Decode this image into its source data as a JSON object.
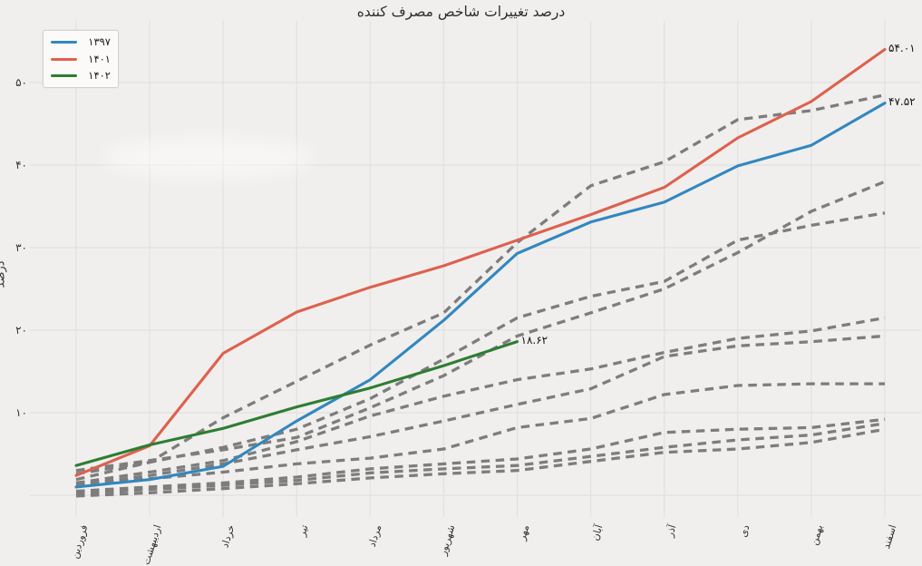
{
  "chart_data": {
    "type": "line",
    "title": "درصد تغییرات شاخص مصرف کننده",
    "ylabel": "درصد",
    "xlabel": "",
    "grid": true,
    "legend_position": "upper-left",
    "ylim": [
      -1,
      56
    ],
    "y_gridlines": [
      0,
      10,
      20,
      30,
      40,
      50
    ],
    "y_ticks": [
      {
        "value": 50,
        "label": "۵۰"
      },
      {
        "value": 40,
        "label": "۴۰"
      },
      {
        "value": 30,
        "label": "۳۰"
      },
      {
        "value": 20,
        "label": "۲۰"
      },
      {
        "value": 10,
        "label": "۱۰"
      }
    ],
    "categories": [
      "فروردین",
      "اردیبهشت",
      "خرداد",
      "تیر",
      "مرداد",
      "شهریور",
      "مهر",
      "آبان",
      "آذر",
      "دی",
      "بهمن",
      "اسفند"
    ],
    "series": [
      {
        "name": "year-1397",
        "label": "۱۳۹۷",
        "color": "#3287bf",
        "style": "solid",
        "end_annotation": "۴۷.۵۲",
        "values": [
          1.0,
          1.9,
          3.5,
          9.0,
          14.0,
          21.2,
          29.3,
          33.1,
          35.5,
          39.9,
          42.4,
          47.52
        ]
      },
      {
        "name": "year-1401",
        "label": "۱۴۰۱",
        "color": "#dd614f",
        "style": "solid",
        "end_annotation": "۵۴.۰۱",
        "values": [
          2.4,
          6.0,
          17.2,
          22.2,
          25.2,
          27.8,
          30.9,
          34.0,
          37.3,
          43.3,
          47.7,
          54.01
        ]
      },
      {
        "name": "year-1402",
        "label": "۱۴۰۲",
        "color": "#2e7d32",
        "style": "solid",
        "end_annotation": "۱۸.۶۲",
        "values": [
          3.6,
          6.1,
          8.1,
          10.7,
          13.0,
          15.7,
          18.62,
          null,
          null,
          null,
          null,
          null
        ]
      },
      {
        "name": "unlabeled-dashed-1",
        "label": "",
        "color": "#7d7d7d",
        "style": "dashed",
        "values": [
          1.9,
          4.0,
          9.4,
          13.8,
          18.2,
          22.1,
          30.6,
          37.5,
          40.4,
          45.5,
          46.6,
          48.5
        ]
      },
      {
        "name": "unlabeled-dashed-2",
        "label": "",
        "color": "#7d7d7d",
        "style": "dashed",
        "values": [
          3.0,
          4.2,
          5.5,
          7.0,
          10.6,
          14.5,
          19.3,
          22.1,
          25.0,
          29.4,
          34.4,
          38.0
        ]
      },
      {
        "name": "unlabeled-dashed-3",
        "label": "",
        "color": "#7d7d7d",
        "style": "dashed",
        "values": [
          2.6,
          4.0,
          5.8,
          8.0,
          11.7,
          16.5,
          21.5,
          24.1,
          25.9,
          30.9,
          32.7,
          34.2
        ]
      },
      {
        "name": "unlabeled-dashed-4",
        "label": "",
        "color": "#7d7d7d",
        "style": "dashed",
        "values": [
          1.5,
          2.8,
          4.2,
          6.5,
          9.6,
          12.0,
          14.0,
          15.3,
          17.3,
          19.0,
          19.9,
          21.5
        ]
      },
      {
        "name": "unlabeled-dashed-5",
        "label": "",
        "color": "#7d7d7d",
        "style": "dashed",
        "values": [
          1.2,
          2.4,
          3.8,
          5.5,
          7.1,
          9.0,
          11.0,
          12.9,
          16.8,
          18.1,
          18.6,
          19.3
        ]
      },
      {
        "name": "unlabeled-dashed-6",
        "label": "",
        "color": "#7d7d7d",
        "style": "dashed",
        "values": [
          1.4,
          2.0,
          2.8,
          3.8,
          4.5,
          5.6,
          8.2,
          9.3,
          12.2,
          13.3,
          13.5,
          13.5
        ]
      },
      {
        "name": "unlabeled-dashed-7",
        "label": "",
        "color": "#7d7d7d",
        "style": "dashed",
        "values": [
          0.5,
          1.0,
          1.5,
          2.2,
          3.2,
          3.8,
          4.4,
          5.6,
          7.6,
          8.0,
          8.2,
          9.2
        ]
      },
      {
        "name": "unlabeled-dashed-8",
        "label": "",
        "color": "#7d7d7d",
        "style": "dashed",
        "values": [
          0.2,
          0.7,
          1.2,
          1.8,
          2.7,
          3.2,
          3.6,
          4.7,
          5.8,
          6.7,
          7.3,
          8.7
        ]
      },
      {
        "name": "unlabeled-dashed-9",
        "label": "",
        "color": "#7d7d7d",
        "style": "dashed",
        "values": [
          -0.1,
          0.3,
          0.8,
          1.4,
          2.1,
          2.6,
          3.0,
          4.1,
          5.2,
          5.6,
          6.4,
          8.0
        ]
      }
    ]
  },
  "colors": {
    "background": "#f0efed",
    "gridline": "#e2e1df",
    "dashed_gray": "#7d7d7d"
  }
}
